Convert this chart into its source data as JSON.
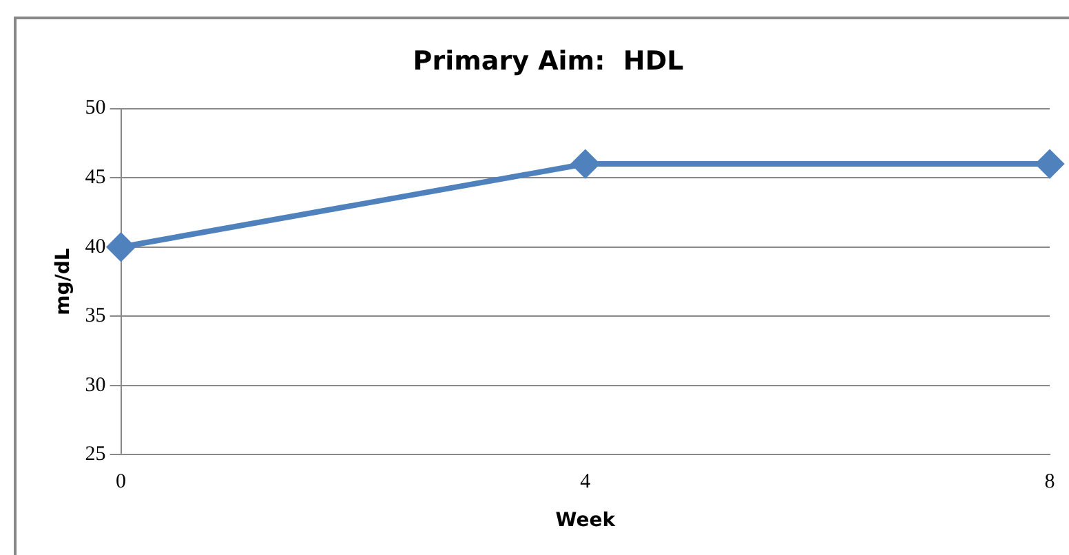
{
  "chart_data": {
    "type": "line",
    "title": "Primary Aim:  HDL",
    "xlabel": "Week",
    "ylabel": "mg/dL",
    "categories": [
      "0",
      "4",
      "8"
    ],
    "series": [
      {
        "color": "#4f81bd",
        "values": [
          40,
          46,
          46
        ]
      }
    ],
    "ylim": [
      25,
      50
    ],
    "yticks": [
      25,
      30,
      35,
      40,
      45,
      50
    ],
    "grid": "y",
    "legend": false,
    "marker": "diamond",
    "line_style": "solid"
  }
}
